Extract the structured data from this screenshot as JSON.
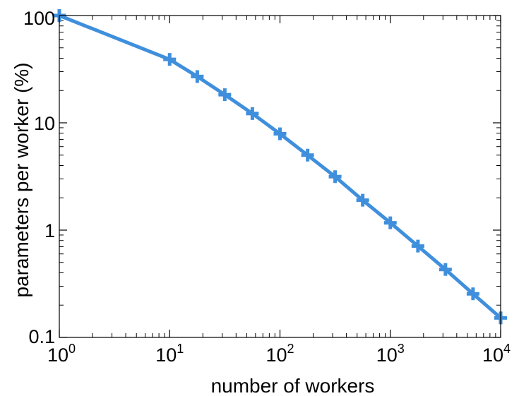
{
  "chart_data": {
    "type": "line",
    "xscale": "log",
    "yscale": "log",
    "xlabel": "number of workers",
    "ylabel": "parameters per worker (%)",
    "xlim": [
      1,
      10000
    ],
    "ylim": [
      0.1,
      100
    ],
    "x_ticks": [
      {
        "value": 1,
        "base": "10",
        "exp": "0"
      },
      {
        "value": 10,
        "base": "10",
        "exp": "1"
      },
      {
        "value": 100,
        "base": "10",
        "exp": "2"
      },
      {
        "value": 1000,
        "base": "10",
        "exp": "3"
      },
      {
        "value": 10000,
        "base": "10",
        "exp": "4"
      }
    ],
    "y_ticks": [
      {
        "value": 0.1,
        "label": "0.1"
      },
      {
        "value": 1,
        "label": "1"
      },
      {
        "value": 10,
        "label": "10"
      },
      {
        "value": 100,
        "label": "100"
      }
    ],
    "grid": false,
    "series": [
      {
        "color": "#3f8fdc",
        "marker": "plus",
        "x": [
          1,
          10,
          17.8,
          31.6,
          56.2,
          100,
          178,
          316,
          562,
          1000,
          1780,
          3160,
          5620,
          10000
        ],
        "y": [
          100,
          39,
          27,
          18.3,
          12.2,
          7.9,
          5.0,
          3.15,
          1.9,
          1.17,
          0.71,
          0.43,
          0.255,
          0.152
        ]
      }
    ]
  }
}
